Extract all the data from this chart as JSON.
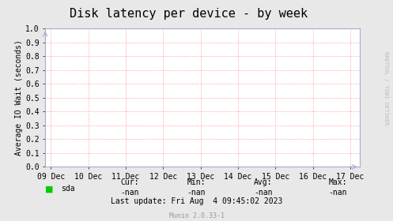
{
  "title": "Disk latency per device - by week",
  "ylabel": "Average IO Wait (seconds)",
  "bg_color": "#e8e8e8",
  "plot_bg_color": "#ffffff",
  "grid_color": "#ff9999",
  "grid_linestyle": ":",
  "ylim": [
    0.0,
    1.0
  ],
  "yticks": [
    0.0,
    0.1,
    0.2,
    0.3,
    0.4,
    0.5,
    0.6,
    0.7,
    0.8,
    0.9,
    1.0
  ],
  "xtick_labels": [
    "09 Dec",
    "10 Dec",
    "11 Dec",
    "12 Dec",
    "13 Dec",
    "14 Dec",
    "15 Dec",
    "16 Dec",
    "17 Dec"
  ],
  "xtick_positions": [
    0,
    1,
    2,
    3,
    4,
    5,
    6,
    7,
    8
  ],
  "xlim": [
    -0.15,
    8.25
  ],
  "legend_label": "sda",
  "legend_color": "#00cc00",
  "cur_label": "Cur:",
  "cur_value": "-nan",
  "min_label": "Min:",
  "min_value": "-nan",
  "avg_label": "Avg:",
  "avg_value": "-nan",
  "max_label": "Max:",
  "max_value": "-nan",
  "last_update": "Last update: Fri Aug  4 09:45:02 2023",
  "munin_label": "Munin 2.0.33-1",
  "rrdtool_label": "RRDTOOL / TOBI OETIKER",
  "title_fontsize": 11,
  "axis_label_fontsize": 7,
  "tick_fontsize": 7,
  "footer_fontsize": 7,
  "munin_fontsize": 6,
  "rrdtool_fontsize": 5,
  "arrow_color": "#aaaacc",
  "spine_color": "#aaaacc"
}
